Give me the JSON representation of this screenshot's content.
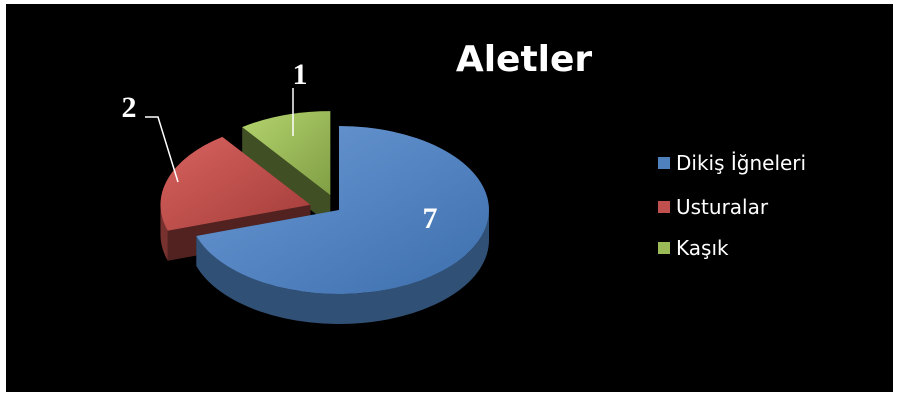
{
  "chart_data": {
    "type": "pie",
    "title": "Aletler",
    "categories": [
      "Dikiş İğneleri",
      "Usturalar",
      "Kaşık"
    ],
    "values": [
      7,
      2,
      1
    ],
    "data_labels": [
      "7",
      "2",
      "1"
    ],
    "colors": [
      "#4F81BD",
      "#C0504D",
      "#9BBB59"
    ],
    "legend": "right",
    "style": "3d-exploded"
  }
}
